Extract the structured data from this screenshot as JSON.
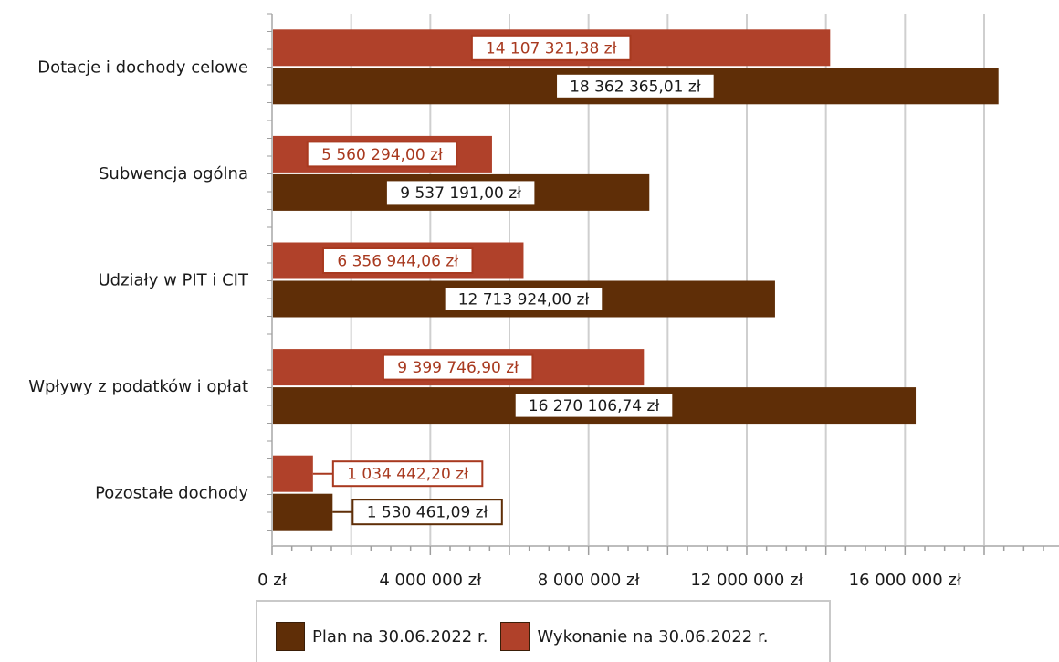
{
  "chart_data": {
    "type": "bar",
    "orientation": "horizontal",
    "categories": [
      "Dotacje i dochody celowe",
      "Subwencja ogólna",
      "Udziały w PIT i CIT",
      "Wpływy z podatków i opłat",
      "Pozostałe dochody"
    ],
    "series": [
      {
        "name": "Wykonanie na 30.06.2022 r.",
        "color": "#b0412a",
        "values": [
          14107321.38,
          5560294.0,
          6356944.06,
          9399746.9,
          1034442.2
        ],
        "labels": [
          "14 107 321,38 zł",
          "5 560 294,00 zł",
          "6 356 944,06 zł",
          "9 399 746,90 zł",
          "1 034 442,20 zł"
        ]
      },
      {
        "name": "Plan na 30.06.2022 r.",
        "color": "#5f2e07",
        "values": [
          18362365.01,
          9537191.0,
          12713924.0,
          16270106.74,
          1530461.09
        ],
        "labels": [
          "18 362 365,01 zł",
          "9 537 191,00 zł",
          "12 713 924,00 zł",
          "16 270 106,74 zł",
          "1 530 461,09 zł"
        ]
      }
    ],
    "x_ticks": [
      0,
      4000000,
      8000000,
      12000000,
      16000000
    ],
    "x_tick_labels": [
      "0 zł",
      "4 000 000 zł",
      "8 000 000 zł",
      "12 000 000 zł",
      "16 000 000 zł"
    ],
    "xlim": [
      0,
      19500000
    ],
    "grid": true,
    "legend_position": "bottom"
  },
  "legend": {
    "items": [
      {
        "label": "Plan na 30.06.2022 r.",
        "color": "#5f2e07"
      },
      {
        "label": "Wykonanie na 30.06.2022 r.",
        "color": "#b0412a"
      }
    ]
  }
}
